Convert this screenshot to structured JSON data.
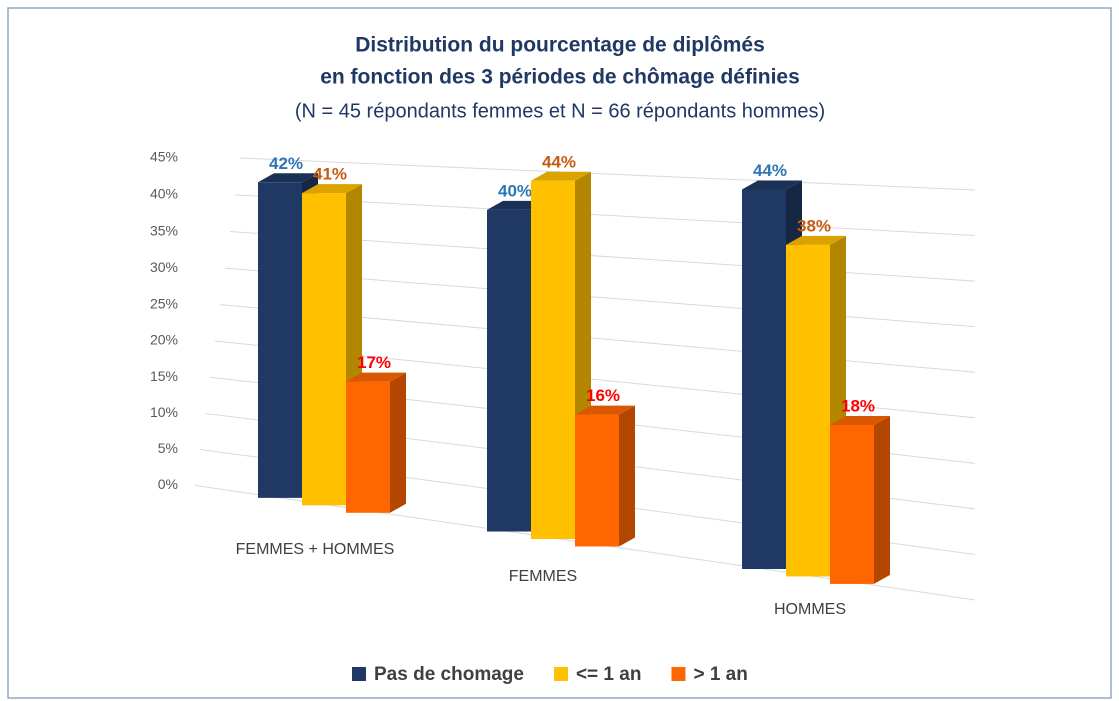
{
  "chart_data": {
    "type": "bar3d",
    "title": "Distribution du pourcentage de diplômés",
    "title_line2": "en fonction des 3 périodes de chômage définies",
    "subtitle": "(N = 45 répondants femmes et N = 66 répondants hommes)",
    "categories": [
      "FEMMES + HOMMES",
      "FEMMES",
      "HOMMES"
    ],
    "series": [
      {
        "name": "Pas de chomage",
        "color": "#203864",
        "label_color": "#2e75b6",
        "values": [
          42,
          40,
          44
        ],
        "value_labels": [
          "42%",
          "40%",
          "44%"
        ]
      },
      {
        "name": "<= 1 an",
        "color": "#ffc000",
        "label_color": "#c55a11",
        "values": [
          41,
          44,
          38
        ],
        "value_labels": [
          "41%",
          "44%",
          "38%"
        ]
      },
      {
        "name": "> 1 an",
        "color": "#ff6600",
        "label_color": "#ff0000",
        "values": [
          17,
          16,
          18
        ],
        "value_labels": [
          "17%",
          "16%",
          "18%"
        ]
      }
    ],
    "ylim": [
      0,
      45
    ],
    "yticks": [
      {
        "value": 0,
        "label": "0%"
      },
      {
        "value": 5,
        "label": "5%"
      },
      {
        "value": 10,
        "label": "10%"
      },
      {
        "value": 15,
        "label": "15%"
      },
      {
        "value": 20,
        "label": "20%"
      },
      {
        "value": 25,
        "label": "25%"
      },
      {
        "value": 30,
        "label": "30%"
      },
      {
        "value": 35,
        "label": "35%"
      },
      {
        "value": 40,
        "label": "40%"
      },
      {
        "value": 45,
        "label": "45%"
      }
    ],
    "grid": true,
    "legend": "bottom"
  }
}
